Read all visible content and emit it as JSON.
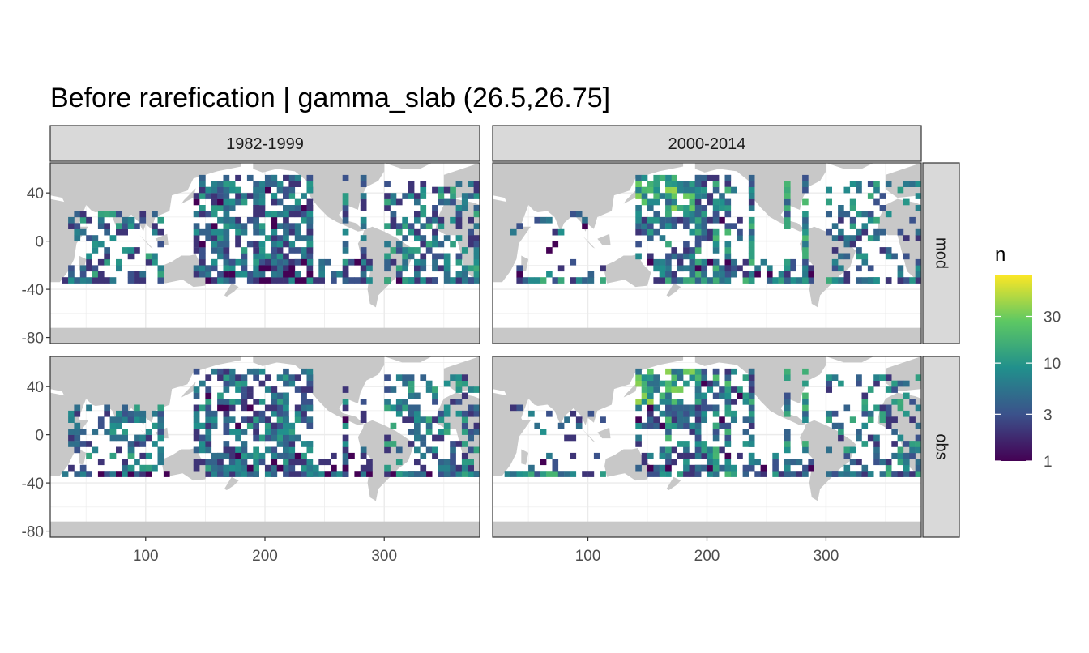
{
  "chart_data": {
    "type": "heatmap",
    "title": "Before rarefication | gamma_slab (26.5,26.75]",
    "facets": {
      "columns": [
        "1982-1999",
        "2000-2014"
      ],
      "rows": [
        "mod",
        "obs"
      ]
    },
    "x_ticks": [
      100,
      200,
      300
    ],
    "y_ticks": [
      40,
      0,
      -40,
      -80
    ],
    "xlim": [
      20,
      380
    ],
    "ylim": [
      -85,
      65
    ],
    "legend": {
      "title": "n",
      "position": "right",
      "scale": "log",
      "ticks": [
        1,
        3,
        10,
        30
      ],
      "range": [
        1,
        80
      ],
      "colors": [
        "#440154",
        "#3b528b",
        "#21908c",
        "#5dc863",
        "#fde725"
      ]
    },
    "land_color": "#c8c8c8",
    "cell_note": "5x5 degree grid cells with observation counts n; tracks along ship sections",
    "grid": true
  }
}
